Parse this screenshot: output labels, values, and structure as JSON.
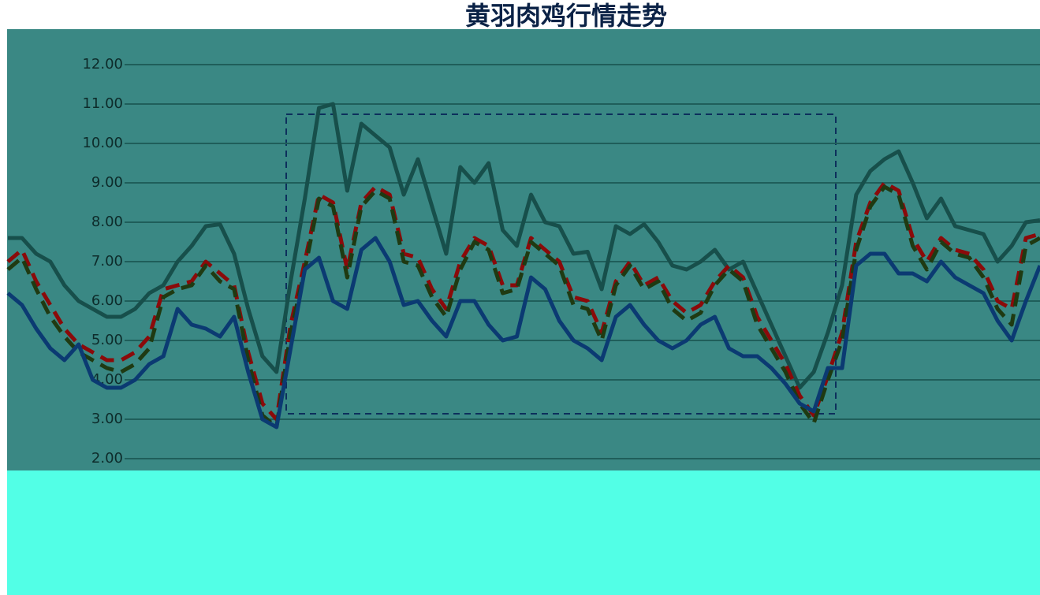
{
  "chart_data": {
    "type": "line",
    "title": "黄羽肉鸡行情走势",
    "categories": [
      null,
      null,
      null,
      null,
      null,
      null,
      null,
      null,
      null,
      null,
      null,
      null,
      null,
      null,
      null,
      null,
      null,
      null,
      null,
      null,
      null,
      null,
      null,
      null,
      null,
      null,
      null,
      null,
      null,
      null,
      null,
      null,
      null,
      null,
      null,
      null,
      null,
      null,
      null,
      null,
      null,
      null,
      null,
      null,
      null,
      null,
      null,
      null,
      null,
      null,
      null,
      null,
      null,
      null,
      null,
      null,
      null,
      null,
      null,
      null,
      null,
      null,
      null,
      null,
      null,
      null,
      null,
      null,
      null,
      null,
      null,
      null,
      null,
      null
    ],
    "series": [
      {
        "color": "#174f4b",
        "dash": false,
        "values": [
          7.6,
          7.6,
          7.2,
          7.0,
          6.4,
          6.0,
          5.8,
          5.6,
          5.6,
          5.8,
          6.2,
          6.4,
          7.0,
          7.4,
          7.9,
          7.95,
          7.2,
          5.8,
          4.6,
          4.2,
          6.5,
          8.6,
          10.9,
          11.0,
          8.8,
          10.5,
          10.2,
          9.9,
          8.7,
          9.6,
          8.4,
          7.2,
          9.4,
          9.0,
          9.5,
          7.8,
          7.4,
          8.7,
          8.0,
          7.9,
          7.2,
          7.25,
          6.3,
          7.9,
          7.7,
          7.95,
          7.5,
          6.9,
          6.8,
          7.0,
          7.3,
          6.8,
          7.0,
          6.2,
          5.4,
          4.6,
          3.8,
          4.2,
          5.2,
          6.4,
          8.7,
          9.3,
          9.6,
          9.8,
          9.0,
          8.1,
          8.6,
          7.9,
          7.8,
          7.7,
          7.0,
          7.4,
          8.0,
          8.05
        ]
      },
      {
        "color": "#8b0a0a",
        "dash": true,
        "values": [
          7.0,
          7.3,
          6.5,
          5.9,
          5.3,
          4.9,
          4.7,
          4.5,
          4.5,
          4.7,
          5.1,
          6.3,
          6.4,
          6.5,
          7.0,
          6.7,
          6.4,
          4.7,
          3.4,
          3.0,
          5.4,
          7.0,
          8.7,
          8.5,
          6.8,
          8.5,
          8.9,
          8.7,
          7.2,
          7.1,
          6.3,
          5.8,
          7.0,
          7.6,
          7.4,
          6.4,
          6.4,
          7.6,
          7.3,
          7.0,
          6.1,
          6.0,
          5.2,
          6.5,
          7.0,
          6.4,
          6.6,
          6.0,
          5.7,
          5.9,
          6.5,
          6.9,
          6.6,
          5.6,
          5.0,
          4.4,
          3.6,
          3.1,
          4.1,
          5.2,
          7.5,
          8.5,
          9.0,
          8.8,
          7.6,
          7.0,
          7.6,
          7.3,
          7.2,
          6.8,
          6.0,
          5.8,
          7.6,
          7.7
        ]
      },
      {
        "color": "#1f3a12",
        "dash": true,
        "values": [
          6.8,
          7.1,
          6.3,
          5.6,
          5.1,
          4.7,
          4.5,
          4.3,
          4.2,
          4.4,
          4.8,
          6.1,
          6.3,
          6.4,
          6.9,
          6.5,
          6.3,
          4.5,
          3.1,
          2.8,
          5.2,
          6.8,
          8.6,
          8.4,
          6.6,
          8.4,
          8.8,
          8.6,
          7.0,
          6.9,
          6.1,
          5.6,
          6.8,
          7.5,
          7.3,
          6.2,
          6.3,
          7.5,
          7.2,
          6.9,
          5.9,
          5.8,
          5.0,
          6.4,
          6.9,
          6.3,
          6.5,
          5.8,
          5.5,
          5.7,
          6.4,
          6.8,
          6.5,
          5.4,
          4.8,
          4.2,
          3.4,
          2.9,
          4.0,
          5.0,
          7.3,
          8.4,
          8.9,
          8.7,
          7.4,
          6.8,
          7.5,
          7.2,
          7.1,
          6.6,
          5.8,
          5.4,
          7.4,
          7.6
        ]
      },
      {
        "color": "#0b3a72",
        "dash": false,
        "values": [
          6.2,
          5.9,
          5.3,
          4.8,
          4.5,
          4.9,
          4.0,
          3.8,
          3.8,
          4.0,
          4.4,
          4.6,
          5.8,
          5.4,
          5.3,
          5.1,
          5.6,
          4.2,
          3.0,
          2.8,
          4.8,
          6.8,
          7.1,
          6.0,
          5.8,
          7.3,
          7.6,
          7.0,
          5.9,
          6.0,
          5.5,
          5.1,
          6.0,
          6.0,
          5.4,
          5.0,
          5.1,
          6.6,
          6.3,
          5.5,
          5.0,
          4.8,
          4.5,
          5.6,
          5.9,
          5.4,
          5.0,
          4.8,
          5.0,
          5.4,
          5.6,
          4.8,
          4.6,
          4.6,
          4.3,
          3.9,
          3.4,
          3.2,
          4.3,
          4.3,
          6.9,
          7.2,
          7.2,
          6.7,
          6.7,
          6.5,
          7.0,
          6.6,
          6.4,
          6.2,
          5.5,
          5.0,
          6.0,
          6.9
        ]
      }
    ],
    "ylim": [
      2,
      12
    ],
    "yticks": [
      {
        "value": 2,
        "label": "2.00"
      },
      {
        "value": 3,
        "label": "3.00"
      },
      {
        "value": 4,
        "label": "4.00"
      },
      {
        "value": 5,
        "label": "5.00"
      },
      {
        "value": 6,
        "label": "6.00"
      },
      {
        "value": 7,
        "label": "7.00"
      },
      {
        "value": 8,
        "label": "8.00"
      },
      {
        "value": 9,
        "label": "9.00"
      },
      {
        "value": 10,
        "label": "10.00"
      },
      {
        "value": 11,
        "label": "11.00"
      },
      {
        "value": 12,
        "label": "12.00"
      }
    ],
    "grid": true
  }
}
